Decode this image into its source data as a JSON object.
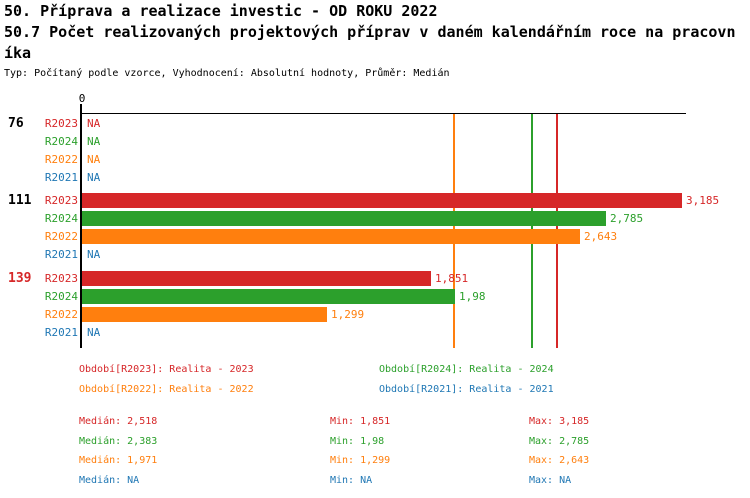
{
  "header": {
    "title_line1": "50. Příprava a realizace investic - OD ROKU 2022",
    "title_line2": "50.7 Počet realizovaných projektových příprav v daném kalendářním roce na pracovn",
    "title_line3": "íka",
    "meta": "Typ: Počítaný podle vzorce, Vyhodnocení: Absolutní hodnoty, Průměr: Medián"
  },
  "chart_data": {
    "type": "bar",
    "orientation": "horizontal",
    "value_axis": {
      "tick": "0",
      "min": 0,
      "xlim": [
        0,
        3.5
      ],
      "grid": false
    },
    "legend_position": "bottom",
    "na_text": "NA",
    "series": [
      {
        "key": "R2023",
        "label": "R2023",
        "color": "#d62728",
        "median": 2.518
      },
      {
        "key": "R2024",
        "label": "R2024",
        "color": "#2ca02c",
        "median": 2.383
      },
      {
        "key": "R2022",
        "label": "R2022",
        "color": "#ff7f0e",
        "median": 1.971
      },
      {
        "key": "R2021",
        "label": "R2021",
        "color": "#1f77b4",
        "median": null
      }
    ],
    "groups": [
      {
        "label": "76",
        "label_color": "#000000",
        "highlighted": false,
        "rows": [
          {
            "series": "R2023",
            "value": null,
            "display": "NA"
          },
          {
            "series": "R2024",
            "value": null,
            "display": "NA"
          },
          {
            "series": "R2022",
            "value": null,
            "display": "NA"
          },
          {
            "series": "R2021",
            "value": null,
            "display": "NA"
          }
        ]
      },
      {
        "label": "111",
        "label_color": "#000000",
        "highlighted": false,
        "rows": [
          {
            "series": "R2023",
            "value": 3.185,
            "display": "3,185"
          },
          {
            "series": "R2024",
            "value": 2.785,
            "display": "2,785"
          },
          {
            "series": "R2022",
            "value": 2.643,
            "display": "2,643"
          },
          {
            "series": "R2021",
            "value": null,
            "display": "NA"
          }
        ]
      },
      {
        "label": "139",
        "label_color": "#d62728",
        "highlighted": true,
        "rows": [
          {
            "series": "R2023",
            "value": 1.851,
            "display": "1,851"
          },
          {
            "series": "R2024",
            "value": 1.98,
            "display": "1,98"
          },
          {
            "series": "R2022",
            "value": 1.299,
            "display": "1,299"
          },
          {
            "series": "R2021",
            "value": null,
            "display": "NA"
          }
        ]
      }
    ]
  },
  "legend": {
    "items": [
      {
        "label": "Období[R2023]: Realita - 2023",
        "color": "#d62728"
      },
      {
        "label": "Období[R2024]: Realita - 2024",
        "color": "#2ca02c"
      },
      {
        "label": "Období[R2022]: Realita - 2022",
        "color": "#ff7f0e"
      },
      {
        "label": "Období[R2021]: Realita - 2021",
        "color": "#1f77b4"
      }
    ]
  },
  "stats": {
    "rows": [
      {
        "color": "#d62728",
        "cells": [
          "Medián: 2,518",
          "Min: 1,851",
          "Max: 3,185"
        ]
      },
      {
        "color": "#2ca02c",
        "cells": [
          "Medián: 2,383",
          "Min: 1,98",
          "Max: 2,785"
        ]
      },
      {
        "color": "#ff7f0e",
        "cells": [
          "Medián: 1,971",
          "Min: 1,299",
          "Max: 2,643"
        ]
      },
      {
        "color": "#1f77b4",
        "cells": [
          "Medián: NA",
          "Min: NA",
          "Max: NA"
        ]
      }
    ]
  }
}
